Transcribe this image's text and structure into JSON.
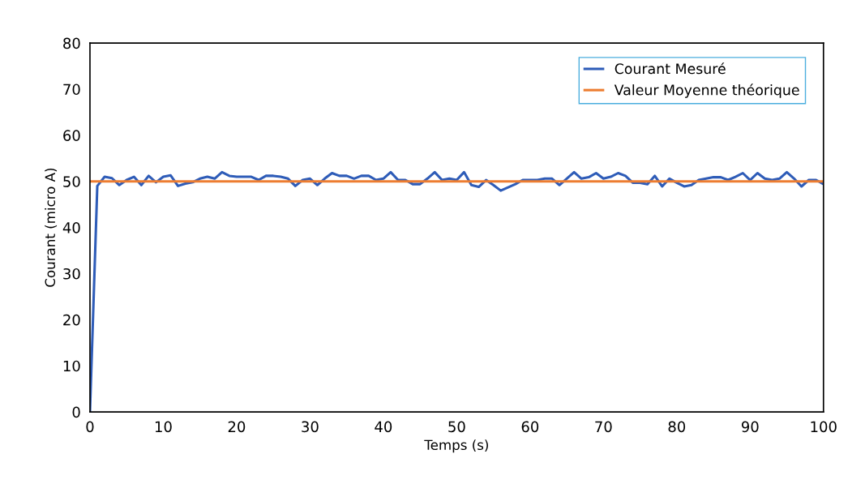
{
  "chart_data": {
    "type": "line",
    "xlabel": "Temps (s)",
    "ylabel": "Courant (micro A)",
    "xlim": [
      0,
      100
    ],
    "xticks": [
      0,
      10,
      20,
      30,
      40,
      50,
      60,
      70,
      80,
      90,
      100
    ],
    "ylim": [
      0,
      80
    ],
    "yticks": [
      0,
      10,
      20,
      30,
      40,
      50,
      60,
      70,
      80
    ],
    "grid": false,
    "legend": "top right",
    "marker": "none",
    "line_style": "solid",
    "series": [
      {
        "name": "Courant Mesuré",
        "color": "#2e5cb8",
        "x": [
          0,
          1,
          2,
          3,
          4,
          5,
          6,
          7,
          8,
          9,
          10,
          11,
          12,
          13,
          14,
          15,
          16,
          17,
          18,
          19,
          20,
          21,
          22,
          23,
          24,
          25,
          26,
          27,
          28,
          29,
          30,
          31,
          32,
          33,
          34,
          35,
          36,
          37,
          38,
          39,
          40,
          41,
          42,
          43,
          44,
          45,
          46,
          47,
          48,
          49,
          50,
          51,
          52,
          53,
          54,
          55,
          56,
          57,
          58,
          59,
          60,
          61,
          62,
          63,
          64,
          65,
          66,
          67,
          68,
          69,
          70,
          71,
          72,
          73,
          74,
          75,
          76,
          77,
          78,
          79,
          80,
          81,
          82,
          83,
          84,
          85,
          86,
          87,
          88,
          89,
          90,
          91,
          92,
          93,
          94,
          95,
          96,
          97,
          98,
          99,
          100
        ],
        "values": [
          0,
          49,
          51,
          50.7,
          49.2,
          50.3,
          51,
          49.2,
          51.2,
          49.8,
          51,
          51.3,
          49,
          49.5,
          49.8,
          50.6,
          51,
          50.6,
          52,
          51.2,
          51,
          51,
          51,
          50.3,
          51.2,
          51.2,
          51,
          50.6,
          49,
          50.3,
          50.6,
          49.2,
          50.6,
          51.8,
          51.2,
          51.2,
          50.6,
          51.2,
          51.2,
          50.3,
          50.6,
          52,
          50.3,
          50.3,
          49.4,
          49.4,
          50.6,
          52,
          50.3,
          50.6,
          50.3,
          52,
          49.2,
          48.8,
          50.3,
          49.2,
          48,
          48.7,
          49.4,
          50.3,
          50.3,
          50.3,
          50.6,
          50.6,
          49.2,
          50.6,
          52,
          50.6,
          50.9,
          51.8,
          50.6,
          51,
          51.8,
          51.2,
          49.7,
          49.7,
          49.4,
          51.2,
          48.9,
          50.6,
          49.7,
          48.9,
          49.2,
          50.3,
          50.6,
          50.9,
          50.9,
          50.3,
          51,
          51.8,
          50.3,
          51.8,
          50.6,
          50.3,
          50.6,
          52,
          50.6,
          48.9,
          50.3,
          50.3,
          49.4
        ]
      },
      {
        "name": "Valeur Moyenne théorique",
        "color": "#ed7d31",
        "x": [
          0,
          100
        ],
        "values": [
          50,
          50
        ]
      }
    ]
  }
}
